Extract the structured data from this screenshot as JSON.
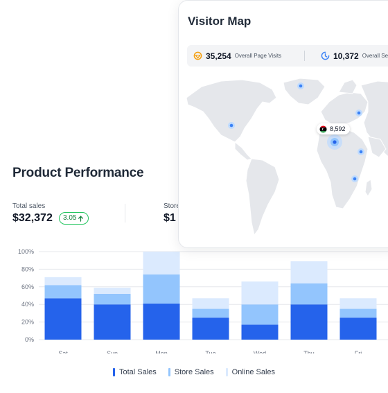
{
  "performance": {
    "title": "Product Performance",
    "total_sales_label": "Total sales",
    "total_sales_value": "$32,372",
    "growth_value": "3.05",
    "store_label": "Store",
    "store_value": "$1"
  },
  "chart_data": {
    "type": "bar",
    "stacked": true,
    "categories": [
      "Sat",
      "Sun",
      "Mon",
      "Tue",
      "Wed",
      "Thu",
      "Fri"
    ],
    "y_ticks": [
      "0%",
      "20%",
      "40%",
      "60%",
      "80%",
      "100%"
    ],
    "ylim": [
      0,
      100
    ],
    "grid": true,
    "legend_position": "bottom",
    "series": [
      {
        "name": "Total Sales",
        "color": "#2563eb",
        "values": [
          47,
          40,
          41,
          25,
          17,
          40,
          25
        ]
      },
      {
        "name": "Store Sales",
        "color": "#93c5fd",
        "values": [
          15,
          12,
          33,
          10,
          23,
          24,
          10
        ]
      },
      {
        "name": "Online Sales",
        "color": "#dbeafe",
        "values": [
          9,
          7,
          26,
          12,
          26,
          25,
          12
        ]
      }
    ]
  },
  "visitor_map": {
    "title": "Visitor Map",
    "page_visits_value": "35,254",
    "page_visits_label": "Overall Page Visits",
    "sessions_value": "10,372",
    "sessions_label": "Overall Se",
    "tooltip_value": "8,592",
    "icons": {
      "visits": "target-icon",
      "sessions": "clock-icon",
      "flag": "libya-flag-icon"
    },
    "accent": "#3b82f6"
  }
}
